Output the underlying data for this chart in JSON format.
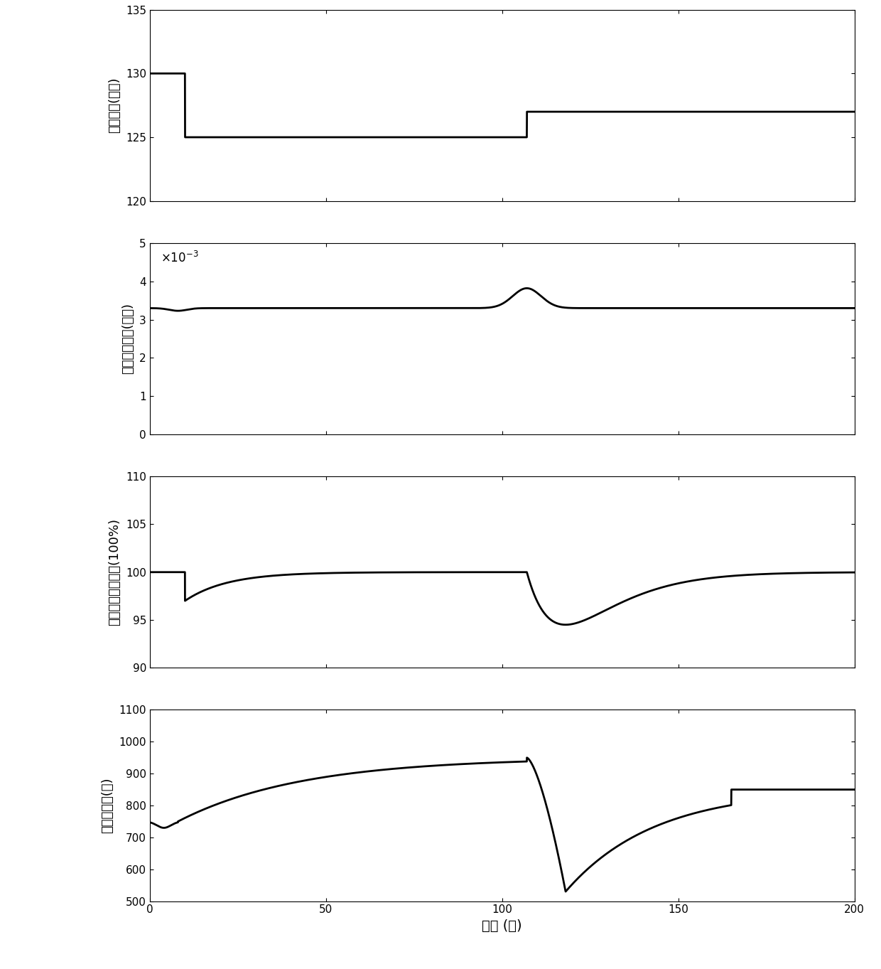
{
  "xlim": [
    0,
    200
  ],
  "xlabel": "时间 (秒)",
  "plots": [
    {
      "ylabel": "外部电流(安培)",
      "ylim": [
        120,
        135
      ],
      "yticks": [
        120,
        125,
        130,
        135
      ]
    },
    {
      "ylabel": "阴极侧水含量(千克)",
      "ylim": [
        0,
        5
      ],
      "yticks": [
        0,
        1,
        2,
        3,
        4,
        5
      ],
      "scale_label": "×10⁻³"
    },
    {
      "ylabel": "阴极出口相对湿度(100%)",
      "ylim": [
        90,
        110
      ],
      "yticks": [
        90,
        95,
        100,
        105,
        110
      ]
    },
    {
      "ylabel": "加湿器功率(瓦)",
      "ylim": [
        500,
        1100
      ],
      "yticks": [
        500,
        600,
        700,
        800,
        900,
        1000,
        1100
      ]
    }
  ],
  "xticks": [
    0,
    50,
    100,
    150,
    200
  ],
  "line_color": "#000000",
  "line_width": 2.0,
  "background_color": "#ffffff",
  "fontsize_label": 13,
  "fontsize_tick": 11
}
